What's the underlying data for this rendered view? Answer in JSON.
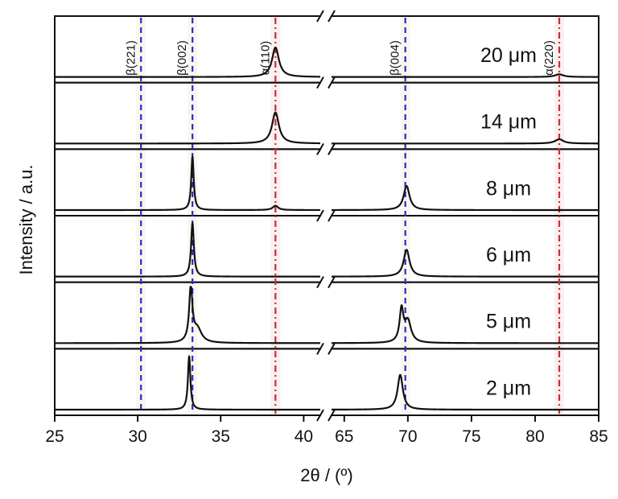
{
  "chart_data": {
    "type": "line",
    "xlabel": "2θ / (º)",
    "ylabel": "Intensity / a.u.",
    "axis_break": [
      41,
      64
    ],
    "xlim": [
      25,
      85
    ],
    "x_ticks": [
      25,
      30,
      35,
      40,
      65,
      70,
      75,
      80,
      85
    ],
    "grid": false,
    "reference_lines": [
      {
        "label": "β(221)",
        "x": 30.2,
        "color": "#2a2ad0",
        "style": "dashed"
      },
      {
        "label": "β(002)",
        "x": 33.3,
        "color": "#2a2ad0",
        "style": "dashed"
      },
      {
        "label": "α(110)",
        "x": 38.3,
        "color": "#c83030",
        "style": "dash-dot"
      },
      {
        "label": "β(004)",
        "x": 69.8,
        "color": "#2a2ad0",
        "style": "dashed"
      },
      {
        "label": "α(220)",
        "x": 81.9,
        "color": "#c83030",
        "style": "dash-dot"
      }
    ],
    "series": [
      {
        "name": "20 μm",
        "peaks": [
          {
            "x": 38.3,
            "height": 0.55,
            "width": 0.25
          },
          {
            "x": 81.9,
            "height": 0.05,
            "width": 0.4
          }
        ]
      },
      {
        "name": "14 μm",
        "peaks": [
          {
            "x": 38.3,
            "height": 0.58,
            "width": 0.25
          },
          {
            "x": 81.9,
            "height": 0.08,
            "width": 0.4
          }
        ]
      },
      {
        "name": "8 μm",
        "peaks": [
          {
            "x": 33.3,
            "height": 1.0,
            "width": 0.09
          },
          {
            "x": 38.3,
            "height": 0.08,
            "width": 0.2
          },
          {
            "x": 69.9,
            "height": 0.45,
            "width": 0.28
          }
        ]
      },
      {
        "name": "6 μm",
        "peaks": [
          {
            "x": 33.3,
            "height": 1.0,
            "width": 0.1
          },
          {
            "x": 69.9,
            "height": 0.5,
            "width": 0.28
          }
        ]
      },
      {
        "name": "5 μm",
        "peaks": [
          {
            "x": 33.2,
            "height": 1.0,
            "width": 0.12
          },
          {
            "x": 33.6,
            "height": 0.25,
            "width": 0.3
          },
          {
            "x": 69.5,
            "height": 0.6,
            "width": 0.18
          },
          {
            "x": 70.0,
            "height": 0.4,
            "width": 0.3
          }
        ]
      },
      {
        "name": "2 μm",
        "peaks": [
          {
            "x": 33.1,
            "height": 1.0,
            "width": 0.09
          },
          {
            "x": 69.4,
            "height": 0.65,
            "width": 0.25
          }
        ]
      }
    ]
  }
}
